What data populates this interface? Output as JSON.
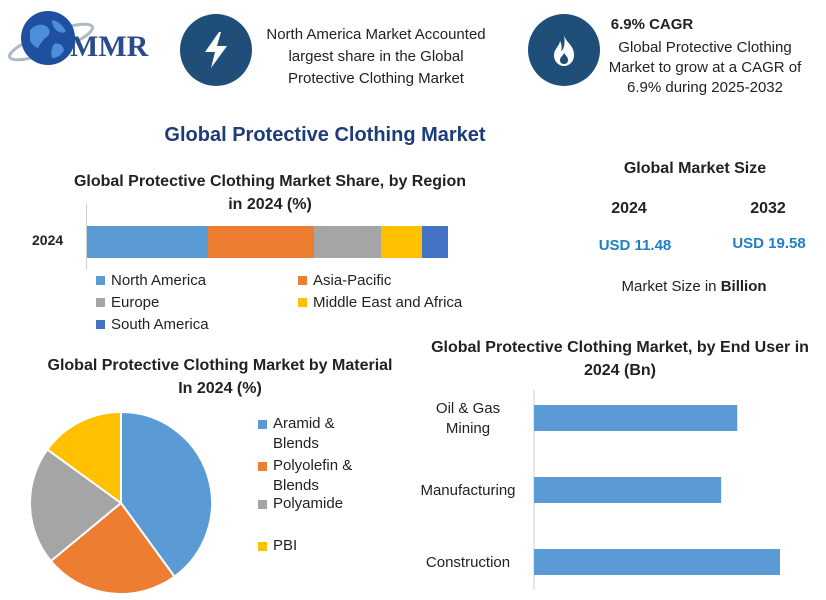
{
  "header": {
    "logo_text": "MMR",
    "badge1_icon": "lightning-bolt-icon",
    "badge1_text": "North America Market Accounted largest share in the Global Protective Clothing Market",
    "badge2_icon": "flame-icon",
    "badge2_title": "6.9% CAGR",
    "badge2_text": "Global Protective Clothing Market to grow at a CAGR of 6.9% during 2025-2032"
  },
  "main_title": "Global Protective Clothing Market",
  "market_size": {
    "title": "Global Market Size",
    "year1": "2024",
    "year2": "2032",
    "value1": "USD 11.48",
    "value2": "USD 19.58",
    "note_prefix": "Market Size in ",
    "note_bold": "Billion"
  },
  "colors": {
    "accent": "#1f4e79",
    "blue": "#5b9bd5",
    "orange": "#ed7d31",
    "gray": "#a5a5a5",
    "yellow": "#ffc000",
    "darkblue": "#4472c4"
  },
  "chart_data": [
    {
      "type": "bar",
      "orientation": "horizontal-stacked",
      "title": "Global Protective Clothing Market Share, by Region in 2024 (%)",
      "categories": [
        "2024"
      ],
      "series": [
        {
          "name": "North America",
          "values": [
            33.5
          ],
          "color": "#5b9bd5"
        },
        {
          "name": "Asia-Pacific",
          "values": [
            29.5
          ],
          "color": "#ed7d31"
        },
        {
          "name": "Europe",
          "values": [
            18.5
          ],
          "color": "#a5a5a5"
        },
        {
          "name": "Middle East and Africa",
          "values": [
            11.3
          ],
          "color": "#ffc000"
        },
        {
          "name": "South America",
          "values": [
            7.2
          ],
          "color": "#4472c4"
        }
      ],
      "legend": "bottom"
    },
    {
      "type": "pie",
      "title": "Global Protective Clothing Market by Material In 2024 (%)",
      "series": [
        {
          "name": "Aramid & Blends",
          "value": 40,
          "color": "#5b9bd5"
        },
        {
          "name": "Polyolefin & Blends",
          "value": 24,
          "color": "#ed7d31"
        },
        {
          "name": "Polyamide",
          "value": 21,
          "color": "#a5a5a5"
        },
        {
          "name": "PBI",
          "value": 15,
          "color": "#ffc000"
        }
      ],
      "legend": "right"
    },
    {
      "type": "bar",
      "orientation": "horizontal",
      "title": "Global Protective Clothing Market, by End User in 2024 (Bn)",
      "categories": [
        "Oil & Gas Mining",
        "Manufacturing",
        "Construction"
      ],
      "category_lines": [
        [
          "Oil & Gas",
          "Mining"
        ],
        [
          "Manufacturing"
        ],
        [
          "Construction"
        ]
      ],
      "values": [
        3.8,
        3.5,
        4.6
      ],
      "color": "#5b9bd5"
    }
  ]
}
